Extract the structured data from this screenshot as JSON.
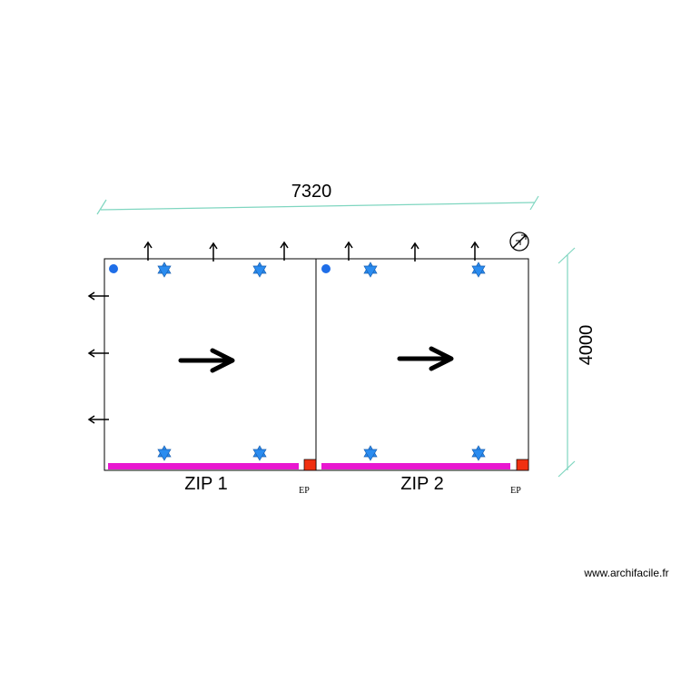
{
  "dimensions": {
    "width": "7320",
    "height": "4000"
  },
  "rooms": [
    {
      "label": "ZIP 1",
      "tag": "EP"
    },
    {
      "label": "ZIP 2",
      "tag": "EP"
    }
  ],
  "watermark": "www.archifacile.fr"
}
